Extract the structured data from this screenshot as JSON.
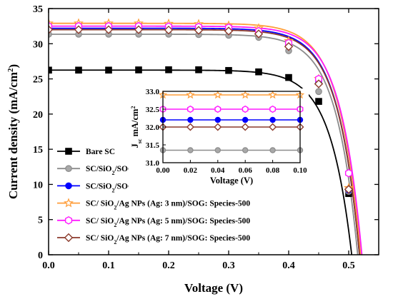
{
  "chart_data": [
    {
      "type": "line",
      "xlabel": "Voltage (V)",
      "ylabel_main": "Current density (mA/cm",
      "ylabel_sup": "2",
      "ylabel_end": ")",
      "xlim": [
        0.0,
        0.55
      ],
      "ylim": [
        0,
        35
      ],
      "xticks": [
        "0.0",
        "0.1",
        "0.2",
        "0.3",
        "0.4",
        "0.5"
      ],
      "yticks": [
        "0",
        "5",
        "10",
        "15",
        "20",
        "25",
        "30",
        "35"
      ],
      "grid": false,
      "legend_position": "bottom-left",
      "series": [
        {
          "name": "Bare SC",
          "name_parts": [
            "Bare SC"
          ],
          "marker": "square",
          "color": "#000000",
          "fill": "#000000",
          "jsc": 26.25,
          "voc": 0.505,
          "steep": 28,
          "marker_x": [
            0.0,
            0.05,
            0.1,
            0.15,
            0.2,
            0.25,
            0.3,
            0.35,
            0.4,
            0.45,
            0.5
          ],
          "marker_y": [
            26.25,
            26.25,
            26.25,
            26.28,
            26.3,
            26.3,
            26.2,
            26.0,
            25.2,
            21.8,
            8.7
          ]
        },
        {
          "name": "SC/SiO2/SOG",
          "name_parts": [
            "SC/SiO",
            "2",
            "/SOG"
          ],
          "marker": "circle",
          "color": "#8c8c8c",
          "fill": "#a8a8a8",
          "jsc": 31.35,
          "voc": 0.515,
          "steep": 28,
          "marker_x": [
            0.0,
            0.05,
            0.1,
            0.15,
            0.2,
            0.25,
            0.3,
            0.35,
            0.4,
            0.45,
            0.5
          ],
          "marker_y": [
            31.35,
            31.35,
            31.35,
            31.35,
            31.35,
            31.3,
            31.2,
            30.9,
            29.0,
            23.2,
            9.0
          ]
        },
        {
          "name": "SC/SiO2/SOG: Species-500",
          "name_parts": [
            "SC/SiO",
            "2",
            "/SOG: Species-500"
          ],
          "marker": "circle",
          "color": "#0000ff",
          "fill": "#0000ff",
          "jsc": 32.2,
          "voc": 0.518,
          "steep": 28,
          "marker_x": [
            0.0,
            0.05,
            0.1,
            0.15,
            0.2,
            0.25,
            0.3,
            0.35,
            0.4,
            0.45,
            0.5
          ],
          "marker_y": [
            32.2,
            32.2,
            32.2,
            32.2,
            32.2,
            32.1,
            32.0,
            31.5,
            29.8,
            24.5,
            9.2
          ]
        },
        {
          "name": "SC/ SiO2/Ag NPs (Ag: 3 nm)/SOG: Species-500",
          "name_parts": [
            "SC/ SiO",
            "2",
            "/Ag NPs (Ag: 3 nm)/SOG: Species-500"
          ],
          "marker": "star",
          "color": "#ff9d3a",
          "fill": "#ffffff",
          "jsc": 32.9,
          "voc": 0.52,
          "steep": 28,
          "marker_x": [
            0.0,
            0.05,
            0.1,
            0.15,
            0.2,
            0.25,
            0.3,
            0.35,
            0.4,
            0.45,
            0.5
          ],
          "marker_y": [
            32.9,
            32.9,
            32.9,
            32.9,
            32.85,
            32.8,
            32.6,
            32.2,
            30.4,
            25.0,
            9.5
          ]
        },
        {
          "name": "SC/ SiO2/Ag NPs (Ag: 5 nm)/SOG: Species-500",
          "name_parts": [
            "SC/ SiO",
            "2",
            "/Ag NPs (Ag: 5 nm)/SOG: Species-500"
          ],
          "marker": "hexagon",
          "color": "#ff1aff",
          "fill": "#ffffff",
          "jsc": 32.5,
          "voc": 0.522,
          "steep": 28,
          "marker_x": [
            0.0,
            0.05,
            0.1,
            0.15,
            0.2,
            0.25,
            0.3,
            0.35,
            0.4,
            0.45,
            0.5
          ],
          "marker_y": [
            32.5,
            32.5,
            32.5,
            32.5,
            32.45,
            32.4,
            32.3,
            31.8,
            30.1,
            25.0,
            11.6
          ]
        },
        {
          "name": "SC/ SiO2/Ag NPs (Ag: 7 nm)/SOG: Species-500",
          "name_parts": [
            "SC/ SiO",
            "2",
            "/Ag NPs (Ag: 7 nm)/SOG: Species-500"
          ],
          "marker": "diamond",
          "color": "#8b3a2b",
          "fill": "#ffffff",
          "jsc": 32.0,
          "voc": 0.518,
          "steep": 28,
          "marker_x": [
            0.0,
            0.05,
            0.1,
            0.15,
            0.2,
            0.25,
            0.3,
            0.35,
            0.4,
            0.45,
            0.5
          ],
          "marker_y": [
            32.0,
            32.0,
            32.0,
            32.0,
            31.95,
            31.9,
            31.8,
            31.4,
            29.6,
            24.3,
            9.3
          ]
        }
      ]
    },
    {
      "type": "line",
      "xlabel": "Voltage (V)",
      "ylabel_main": "J",
      "ylabel_sub": "sc",
      "ylabel_rest": " mA/cm",
      "ylabel_sup": "2",
      "xlim": [
        0.0,
        0.1
      ],
      "ylim": [
        31.0,
        33.0
      ],
      "xticks": [
        "0.00",
        "0.02",
        "0.04",
        "0.06",
        "0.08",
        "0.10"
      ],
      "yticks": [
        "31.0",
        "31.5",
        "32.0",
        "32.5",
        "33.0"
      ],
      "grid": false,
      "series_values": [
        {
          "name": "SC/ SiO2/Ag NPs (Ag: 3 nm)/SOG: Species-500",
          "y": 32.9
        },
        {
          "name": "SC/ SiO2/Ag NPs (Ag: 5 nm)/SOG: Species-500",
          "y": 32.5
        },
        {
          "name": "SC/SiO2/SOG: Species-500",
          "y": 32.2
        },
        {
          "name": "SC/ SiO2/Ag NPs (Ag: 7 nm)/SOG: Species-500",
          "y": 32.0
        },
        {
          "name": "SC/SiO2/SOG",
          "y": 31.35
        }
      ],
      "x_markers": [
        0.0,
        0.02,
        0.04,
        0.06,
        0.08,
        0.1
      ]
    }
  ]
}
